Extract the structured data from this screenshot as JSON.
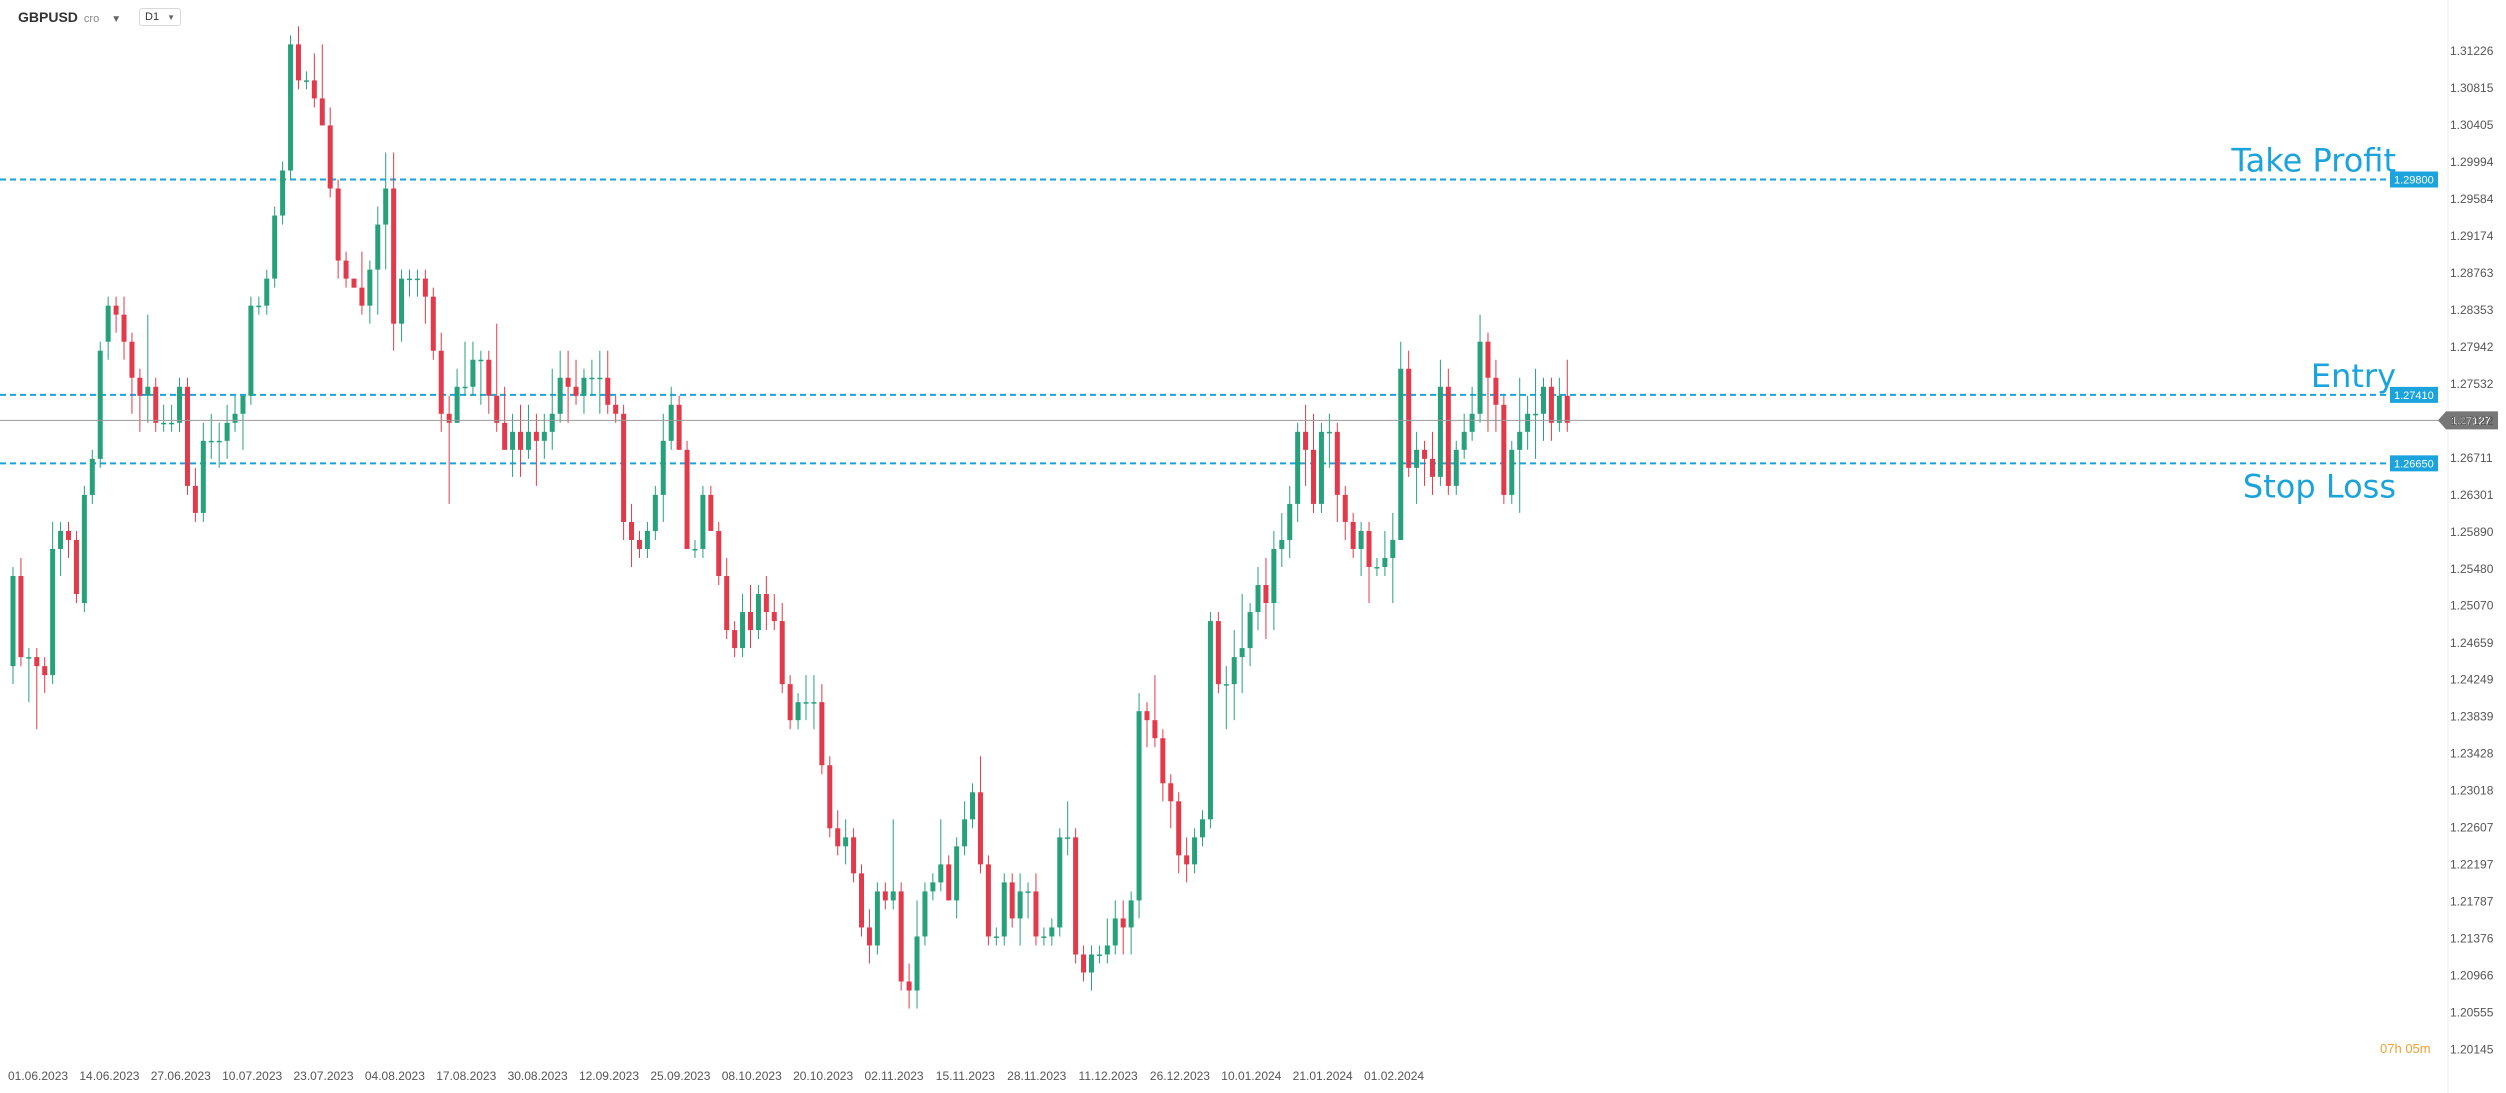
{
  "toolbar": {
    "symbol": "GBPUSD",
    "symbol_suffix": "cro",
    "timeframe": "D1"
  },
  "countdown": {
    "hours": "07",
    "h_unit": "h",
    "minutes": "05",
    "m_unit": "m"
  },
  "colors": {
    "up": "#26a17b",
    "down": "#e23a4a",
    "level_line": "#1aa3dc",
    "price_tag": "#777777"
  },
  "levels": [
    {
      "name": "Take Profit",
      "price": 1.298,
      "tag": "1.29800"
    },
    {
      "name": "Entry",
      "price": 1.2741,
      "tag": "1.27410"
    },
    {
      "name": "Stop Loss",
      "price": 1.2665,
      "tag": "1.26650"
    }
  ],
  "current_price": {
    "price": 1.27127,
    "tag": "1.27127"
  },
  "chart_data": {
    "type": "candlestick",
    "symbol": "GBPUSD",
    "timeframe": "D1",
    "ylim": [
      1.2014,
      1.3157
    ],
    "y_ticks": [
      "1.31226",
      "1.30815",
      "1.30405",
      "1.29994",
      "1.29584",
      "1.29174",
      "1.28763",
      "1.28353",
      "1.27942",
      "1.27532",
      "1.27122",
      "1.26711",
      "1.26301",
      "1.25890",
      "1.25480",
      "1.25070",
      "1.24659",
      "1.24249",
      "1.23839",
      "1.23428",
      "1.23018",
      "1.22607",
      "1.22197",
      "1.21787",
      "1.21376",
      "1.20966",
      "1.20555",
      "1.20145"
    ],
    "x_ticks": [
      {
        "label": "01.06.2023",
        "index": 0
      },
      {
        "label": "14.06.2023",
        "index": 9
      },
      {
        "label": "27.06.2023",
        "index": 18
      },
      {
        "label": "10.07.2023",
        "index": 27
      },
      {
        "label": "23.07.2023",
        "index": 36
      },
      {
        "label": "04.08.2023",
        "index": 45
      },
      {
        "label": "17.08.2023",
        "index": 54
      },
      {
        "label": "30.08.2023",
        "index": 63
      },
      {
        "label": "12.09.2023",
        "index": 72
      },
      {
        "label": "25.09.2023",
        "index": 81
      },
      {
        "label": "08.10.2023",
        "index": 90
      },
      {
        "label": "20.10.2023",
        "index": 99
      },
      {
        "label": "02.11.2023",
        "index": 108
      },
      {
        "label": "15.11.2023",
        "index": 117
      },
      {
        "label": "28.11.2023",
        "index": 126
      },
      {
        "label": "11.12.2023",
        "index": 135
      },
      {
        "label": "26.12.2023",
        "index": 144
      },
      {
        "label": "10.01.2024",
        "index": 153
      },
      {
        "label": "21.01.2024",
        "index": 162
      },
      {
        "label": "01.02.2024",
        "index": 171
      }
    ],
    "candles": [
      [
        1.244,
        1.255,
        1.242,
        1.254
      ],
      [
        1.254,
        1.256,
        1.244,
        1.245
      ],
      [
        1.245,
        1.246,
        1.24,
        1.245
      ],
      [
        1.245,
        1.246,
        1.237,
        1.244
      ],
      [
        1.244,
        1.245,
        1.241,
        1.243
      ],
      [
        1.243,
        1.26,
        1.242,
        1.257
      ],
      [
        1.257,
        1.26,
        1.254,
        1.259
      ],
      [
        1.259,
        1.26,
        1.256,
        1.258
      ],
      [
        1.258,
        1.259,
        1.251,
        1.252
      ],
      [
        1.251,
        1.264,
        1.25,
        1.263
      ],
      [
        1.263,
        1.268,
        1.262,
        1.267
      ],
      [
        1.267,
        1.28,
        1.266,
        1.279
      ],
      [
        1.28,
        1.285,
        1.278,
        1.284
      ],
      [
        1.284,
        1.285,
        1.281,
        1.283
      ],
      [
        1.283,
        1.285,
        1.278,
        1.28
      ],
      [
        1.28,
        1.281,
        1.272,
        1.276
      ],
      [
        1.276,
        1.277,
        1.27,
        1.274
      ],
      [
        1.274,
        1.283,
        1.271,
        1.275
      ],
      [
        1.275,
        1.276,
        1.27,
        1.271
      ],
      [
        1.271,
        1.273,
        1.27,
        1.271
      ],
      [
        1.271,
        1.273,
        1.27,
        1.271
      ],
      [
        1.271,
        1.276,
        1.27,
        1.275
      ],
      [
        1.275,
        1.276,
        1.263,
        1.264
      ],
      [
        1.264,
        1.266,
        1.26,
        1.261
      ],
      [
        1.261,
        1.271,
        1.26,
        1.269
      ],
      [
        1.269,
        1.272,
        1.267,
        1.269
      ],
      [
        1.269,
        1.271,
        1.266,
        1.269
      ],
      [
        1.269,
        1.273,
        1.267,
        1.271
      ],
      [
        1.271,
        1.274,
        1.27,
        1.272
      ],
      [
        1.272,
        1.274,
        1.268,
        1.274
      ],
      [
        1.274,
        1.285,
        1.273,
        1.284
      ],
      [
        1.284,
        1.285,
        1.283,
        1.284
      ],
      [
        1.284,
        1.288,
        1.283,
        1.287
      ],
      [
        1.287,
        1.295,
        1.286,
        1.294
      ],
      [
        1.294,
        1.3,
        1.293,
        1.299
      ],
      [
        1.299,
        1.314,
        1.298,
        1.313
      ],
      [
        1.313,
        1.315,
        1.308,
        1.309
      ],
      [
        1.309,
        1.31,
        1.308,
        1.309
      ],
      [
        1.309,
        1.312,
        1.306,
        1.307
      ],
      [
        1.307,
        1.313,
        1.304,
        1.304
      ],
      [
        1.304,
        1.306,
        1.296,
        1.297
      ],
      [
        1.297,
        1.298,
        1.287,
        1.289
      ],
      [
        1.289,
        1.29,
        1.286,
        1.287
      ],
      [
        1.287,
        1.287,
        1.286,
        1.286
      ],
      [
        1.286,
        1.29,
        1.283,
        1.284
      ],
      [
        1.284,
        1.289,
        1.282,
        1.288
      ],
      [
        1.288,
        1.295,
        1.283,
        1.293
      ],
      [
        1.293,
        1.301,
        1.288,
        1.297
      ],
      [
        1.297,
        1.301,
        1.279,
        1.282
      ],
      [
        1.282,
        1.288,
        1.28,
        1.287
      ],
      [
        1.287,
        1.288,
        1.285,
        1.287
      ],
      [
        1.287,
        1.288,
        1.285,
        1.287
      ],
      [
        1.287,
        1.288,
        1.282,
        1.285
      ],
      [
        1.285,
        1.286,
        1.278,
        1.279
      ],
      [
        1.279,
        1.281,
        1.27,
        1.272
      ],
      [
        1.272,
        1.274,
        1.262,
        1.271
      ],
      [
        1.271,
        1.277,
        1.271,
        1.275
      ],
      [
        1.275,
        1.28,
        1.274,
        1.275
      ],
      [
        1.275,
        1.28,
        1.274,
        1.278
      ],
      [
        1.278,
        1.279,
        1.273,
        1.278
      ],
      [
        1.278,
        1.279,
        1.272,
        1.274
      ],
      [
        1.274,
        1.282,
        1.27,
        1.271
      ],
      [
        1.271,
        1.275,
        1.269,
        1.268
      ],
      [
        1.268,
        1.272,
        1.265,
        1.27
      ],
      [
        1.27,
        1.273,
        1.265,
        1.268
      ],
      [
        1.268,
        1.273,
        1.267,
        1.27
      ],
      [
        1.27,
        1.272,
        1.264,
        1.269
      ],
      [
        1.269,
        1.272,
        1.267,
        1.27
      ],
      [
        1.27,
        1.277,
        1.268,
        1.272
      ],
      [
        1.272,
        1.279,
        1.271,
        1.276
      ],
      [
        1.276,
        1.279,
        1.271,
        1.275
      ],
      [
        1.275,
        1.278,
        1.273,
        1.274
      ],
      [
        1.274,
        1.277,
        1.272,
        1.276
      ],
      [
        1.276,
        1.278,
        1.274,
        1.276
      ],
      [
        1.276,
        1.279,
        1.272,
        1.276
      ],
      [
        1.276,
        1.279,
        1.272,
        1.273
      ],
      [
        1.273,
        1.274,
        1.271,
        1.272
      ],
      [
        1.272,
        1.273,
        1.258,
        1.26
      ],
      [
        1.26,
        1.262,
        1.255,
        1.258
      ],
      [
        1.258,
        1.259,
        1.256,
        1.257
      ],
      [
        1.257,
        1.26,
        1.256,
        1.259
      ],
      [
        1.259,
        1.264,
        1.258,
        1.263
      ],
      [
        1.263,
        1.272,
        1.26,
        1.269
      ],
      [
        1.269,
        1.275,
        1.268,
        1.273
      ],
      [
        1.273,
        1.274,
        1.268,
        1.268
      ],
      [
        1.268,
        1.269,
        1.257,
        1.257
      ],
      [
        1.257,
        1.258,
        1.256,
        1.257
      ],
      [
        1.257,
        1.264,
        1.256,
        1.263
      ],
      [
        1.263,
        1.264,
        1.259,
        1.259
      ],
      [
        1.259,
        1.26,
        1.253,
        1.254
      ],
      [
        1.254,
        1.256,
        1.247,
        1.248
      ],
      [
        1.248,
        1.249,
        1.245,
        1.246
      ],
      [
        1.246,
        1.252,
        1.245,
        1.25
      ],
      [
        1.25,
        1.253,
        1.246,
        1.248
      ],
      [
        1.248,
        1.253,
        1.247,
        1.252
      ],
      [
        1.252,
        1.254,
        1.248,
        1.25
      ],
      [
        1.25,
        1.252,
        1.248,
        1.249
      ],
      [
        1.249,
        1.251,
        1.241,
        1.242
      ],
      [
        1.242,
        1.243,
        1.237,
        1.238
      ],
      [
        1.238,
        1.241,
        1.237,
        1.24
      ],
      [
        1.24,
        1.243,
        1.238,
        1.24
      ],
      [
        1.24,
        1.243,
        1.237,
        1.24
      ],
      [
        1.24,
        1.242,
        1.232,
        1.233
      ],
      [
        1.233,
        1.234,
        1.225,
        1.226
      ],
      [
        1.226,
        1.228,
        1.223,
        1.224
      ],
      [
        1.224,
        1.227,
        1.222,
        1.225
      ],
      [
        1.225,
        1.226,
        1.22,
        1.221
      ],
      [
        1.221,
        1.222,
        1.214,
        1.215
      ],
      [
        1.215,
        1.217,
        1.211,
        1.213
      ],
      [
        1.213,
        1.22,
        1.212,
        1.219
      ],
      [
        1.219,
        1.22,
        1.217,
        1.218
      ],
      [
        1.218,
        1.227,
        1.217,
        1.219
      ],
      [
        1.219,
        1.22,
        1.208,
        1.209
      ],
      [
        1.209,
        1.211,
        1.206,
        1.208
      ],
      [
        1.208,
        1.218,
        1.206,
        1.214
      ],
      [
        1.214,
        1.22,
        1.213,
        1.219
      ],
      [
        1.219,
        1.221,
        1.218,
        1.22
      ],
      [
        1.22,
        1.227,
        1.219,
        1.222
      ],
      [
        1.222,
        1.223,
        1.218,
        1.218
      ],
      [
        1.218,
        1.225,
        1.216,
        1.224
      ],
      [
        1.224,
        1.229,
        1.223,
        1.227
      ],
      [
        1.227,
        1.231,
        1.226,
        1.23
      ],
      [
        1.23,
        1.234,
        1.221,
        1.222
      ],
      [
        1.222,
        1.223,
        1.213,
        1.214
      ],
      [
        1.214,
        1.215,
        1.213,
        1.214
      ],
      [
        1.214,
        1.221,
        1.213,
        1.22
      ],
      [
        1.22,
        1.221,
        1.215,
        1.216
      ],
      [
        1.216,
        1.221,
        1.213,
        1.219
      ],
      [
        1.219,
        1.22,
        1.216,
        1.219
      ],
      [
        1.219,
        1.221,
        1.213,
        1.214
      ],
      [
        1.214,
        1.215,
        1.213,
        1.214
      ],
      [
        1.214,
        1.216,
        1.213,
        1.215
      ],
      [
        1.215,
        1.226,
        1.214,
        1.225
      ],
      [
        1.225,
        1.229,
        1.223,
        1.225
      ],
      [
        1.225,
        1.226,
        1.211,
        1.212
      ],
      [
        1.212,
        1.213,
        1.209,
        1.21
      ],
      [
        1.21,
        1.213,
        1.208,
        1.212
      ],
      [
        1.212,
        1.213,
        1.211,
        1.212
      ],
      [
        1.212,
        1.216,
        1.211,
        1.213
      ],
      [
        1.213,
        1.218,
        1.212,
        1.216
      ],
      [
        1.216,
        1.218,
        1.212,
        1.215
      ],
      [
        1.215,
        1.219,
        1.212,
        1.218
      ],
      [
        1.218,
        1.241,
        1.216,
        1.239
      ],
      [
        1.239,
        1.24,
        1.235,
        1.238
      ],
      [
        1.238,
        1.243,
        1.235,
        1.236
      ],
      [
        1.236,
        1.237,
        1.229,
        1.231
      ],
      [
        1.231,
        1.232,
        1.226,
        1.229
      ],
      [
        1.229,
        1.23,
        1.221,
        1.223
      ],
      [
        1.223,
        1.225,
        1.22,
        1.222
      ],
      [
        1.222,
        1.226,
        1.221,
        1.225
      ],
      [
        1.225,
        1.228,
        1.224,
        1.227
      ],
      [
        1.227,
        1.25,
        1.226,
        1.249
      ],
      [
        1.249,
        1.25,
        1.241,
        1.242
      ],
      [
        1.242,
        1.244,
        1.237,
        1.242
      ],
      [
        1.242,
        1.248,
        1.238,
        1.245
      ],
      [
        1.245,
        1.252,
        1.241,
        1.246
      ],
      [
        1.246,
        1.251,
        1.244,
        1.25
      ],
      [
        1.25,
        1.255,
        1.248,
        1.253
      ],
      [
        1.253,
        1.256,
        1.247,
        1.251
      ],
      [
        1.251,
        1.259,
        1.248,
        1.257
      ],
      [
        1.257,
        1.261,
        1.255,
        1.258
      ],
      [
        1.258,
        1.264,
        1.256,
        1.262
      ],
      [
        1.262,
        1.271,
        1.26,
        1.27
      ],
      [
        1.27,
        1.273,
        1.264,
        1.268
      ],
      [
        1.268,
        1.272,
        1.261,
        1.262
      ],
      [
        1.262,
        1.271,
        1.261,
        1.27
      ],
      [
        1.27,
        1.272,
        1.266,
        1.27
      ],
      [
        1.27,
        1.271,
        1.26,
        1.263
      ],
      [
        1.263,
        1.264,
        1.258,
        1.26
      ],
      [
        1.26,
        1.261,
        1.256,
        1.257
      ],
      [
        1.257,
        1.26,
        1.254,
        1.259
      ],
      [
        1.259,
        1.26,
        1.251,
        1.255
      ],
      [
        1.255,
        1.256,
        1.254,
        1.255
      ],
      [
        1.255,
        1.259,
        1.254,
        1.256
      ],
      [
        1.256,
        1.261,
        1.251,
        1.258
      ],
      [
        1.258,
        1.28,
        1.258,
        1.277
      ],
      [
        1.277,
        1.279,
        1.265,
        1.266
      ],
      [
        1.266,
        1.27,
        1.262,
        1.268
      ],
      [
        1.268,
        1.269,
        1.264,
        1.267
      ],
      [
        1.267,
        1.27,
        1.263,
        1.265
      ],
      [
        1.265,
        1.278,
        1.264,
        1.275
      ],
      [
        1.275,
        1.277,
        1.263,
        1.264
      ],
      [
        1.264,
        1.269,
        1.263,
        1.268
      ],
      [
        1.268,
        1.272,
        1.267,
        1.27
      ],
      [
        1.27,
        1.275,
        1.269,
        1.272
      ],
      [
        1.272,
        1.283,
        1.271,
        1.28
      ],
      [
        1.28,
        1.281,
        1.27,
        1.276
      ],
      [
        1.276,
        1.278,
        1.27,
        1.273
      ],
      [
        1.273,
        1.274,
        1.262,
        1.263
      ],
      [
        1.263,
        1.269,
        1.262,
        1.268
      ],
      [
        1.268,
        1.276,
        1.261,
        1.27
      ],
      [
        1.27,
        1.274,
        1.268,
        1.272
      ],
      [
        1.272,
        1.277,
        1.267,
        1.272
      ],
      [
        1.272,
        1.276,
        1.269,
        1.275
      ],
      [
        1.275,
        1.276,
        1.269,
        1.271
      ],
      [
        1.271,
        1.276,
        1.27,
        1.274
      ],
      [
        1.274,
        1.278,
        1.27,
        1.271
      ]
    ]
  }
}
